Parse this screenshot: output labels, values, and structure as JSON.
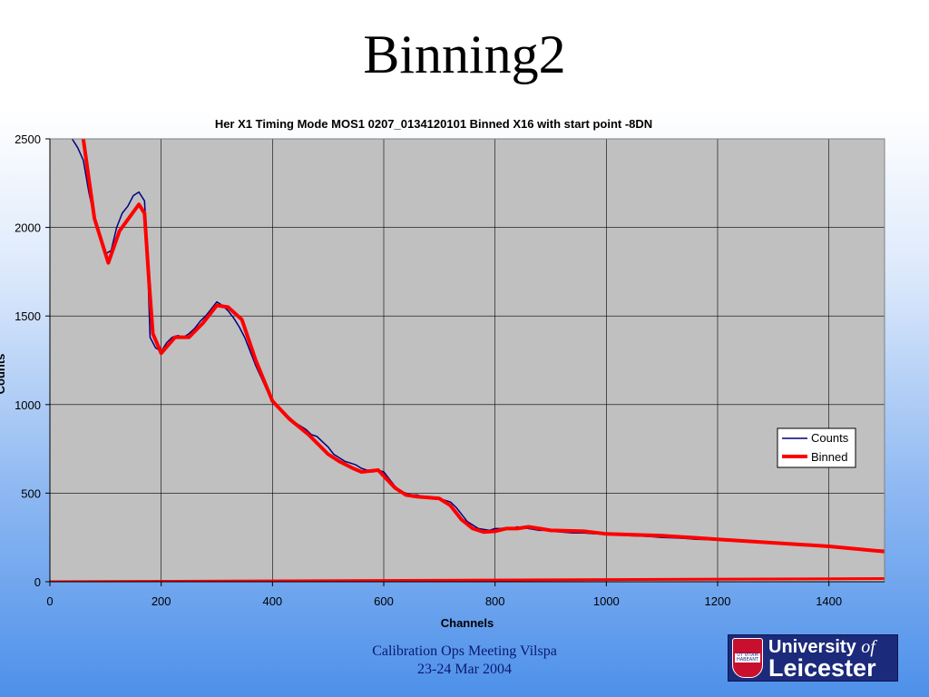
{
  "slide": {
    "title": "Binning2",
    "footer_line1": "Calibration Ops Meeting Vilspa",
    "footer_line2": "23-24 Mar 2004"
  },
  "logo": {
    "line1_main": "University",
    "line1_of": "of",
    "line2": "Leicester",
    "crest_motto": "UT VITAM HABEANT"
  },
  "colors": {
    "plot_background": "#c0c0c0",
    "counts_series": "#000080",
    "binned_series": "#ff0000"
  },
  "chart_data": {
    "type": "line",
    "title": "Her X1 Timing Mode MOS1 0207_0134120101 Binned X16 with start point -8DN",
    "xlabel": "Channels",
    "ylabel": "Counts",
    "xlim": [
      0,
      1500
    ],
    "ylim": [
      0,
      2500
    ],
    "x_ticks": [
      0,
      200,
      400,
      600,
      800,
      1000,
      1200,
      1400
    ],
    "y_ticks": [
      0,
      500,
      1000,
      1500,
      2000,
      2500
    ],
    "grid": true,
    "legend_position": "right",
    "series": [
      {
        "name": "Counts",
        "style": "thin noisy line",
        "x": [
          40,
          50,
          60,
          70,
          80,
          90,
          100,
          110,
          120,
          130,
          140,
          150,
          160,
          170,
          175,
          180,
          190,
          200,
          210,
          220,
          230,
          240,
          250,
          260,
          270,
          280,
          290,
          300,
          310,
          320,
          330,
          340,
          350,
          360,
          370,
          380,
          390,
          400,
          410,
          420,
          430,
          440,
          450,
          460,
          470,
          480,
          490,
          500,
          510,
          520,
          530,
          540,
          550,
          560,
          570,
          580,
          590,
          600,
          610,
          620,
          630,
          640,
          650,
          660,
          670,
          680,
          690,
          700,
          710,
          720,
          730,
          740,
          750,
          760,
          770,
          780,
          790,
          800,
          810,
          820,
          830,
          840,
          850,
          860,
          870,
          880,
          890,
          900,
          920,
          940,
          960,
          980,
          1000,
          1020,
          1040,
          1060,
          1080,
          1100,
          1120,
          1140,
          1160,
          1180,
          1200,
          1220,
          1240,
          1260,
          1280,
          1300,
          1320,
          1340,
          1360,
          1380,
          1400,
          1420,
          1440,
          1460,
          1480,
          1500
        ],
        "y": [
          2500,
          2450,
          2380,
          2200,
          2050,
          1950,
          1850,
          1870,
          2000,
          2080,
          2120,
          2180,
          2200,
          2150,
          1850,
          1380,
          1320,
          1300,
          1350,
          1380,
          1390,
          1380,
          1400,
          1430,
          1470,
          1500,
          1540,
          1580,
          1560,
          1530,
          1490,
          1440,
          1380,
          1300,
          1220,
          1150,
          1080,
          1020,
          980,
          950,
          930,
          900,
          880,
          860,
          830,
          820,
          790,
          760,
          720,
          700,
          680,
          670,
          660,
          640,
          630,
          620,
          630,
          620,
          580,
          540,
          510,
          500,
          490,
          490,
          480,
          480,
          470,
          470,
          460,
          450,
          420,
          380,
          340,
          320,
          300,
          295,
          290,
          300,
          300,
          305,
          300,
          310,
          305,
          300,
          295,
          290,
          290,
          285,
          280,
          275,
          275,
          270,
          270,
          265,
          260,
          258,
          255,
          250,
          248,
          245,
          240,
          238,
          235,
          230,
          228,
          225,
          222,
          218,
          215,
          210,
          205,
          200,
          198,
          195,
          190,
          185,
          180,
          178
        ]
      },
      {
        "name": "Binned",
        "style": "thick line",
        "x": [
          60,
          80,
          105,
          125,
          160,
          170,
          178,
          185,
          200,
          225,
          250,
          275,
          300,
          320,
          345,
          370,
          400,
          430,
          465,
          500,
          520,
          545,
          560,
          590,
          620,
          640,
          660,
          700,
          720,
          740,
          760,
          780,
          800,
          820,
          840,
          860,
          880,
          900,
          960,
          1000,
          1100,
          1200,
          1300,
          1400,
          1500
        ],
        "y": [
          2500,
          2050,
          1800,
          1980,
          2130,
          2080,
          1700,
          1400,
          1290,
          1380,
          1380,
          1460,
          1560,
          1550,
          1480,
          1250,
          1020,
          920,
          830,
          720,
          680,
          640,
          620,
          630,
          530,
          490,
          480,
          470,
          430,
          350,
          300,
          280,
          285,
          300,
          300,
          310,
          300,
          290,
          285,
          270,
          260,
          240,
          220,
          200,
          170
        ]
      },
      {
        "name": "",
        "style": "thick baseline line",
        "x": [
          0,
          1500
        ],
        "y": [
          0,
          18
        ]
      }
    ]
  }
}
